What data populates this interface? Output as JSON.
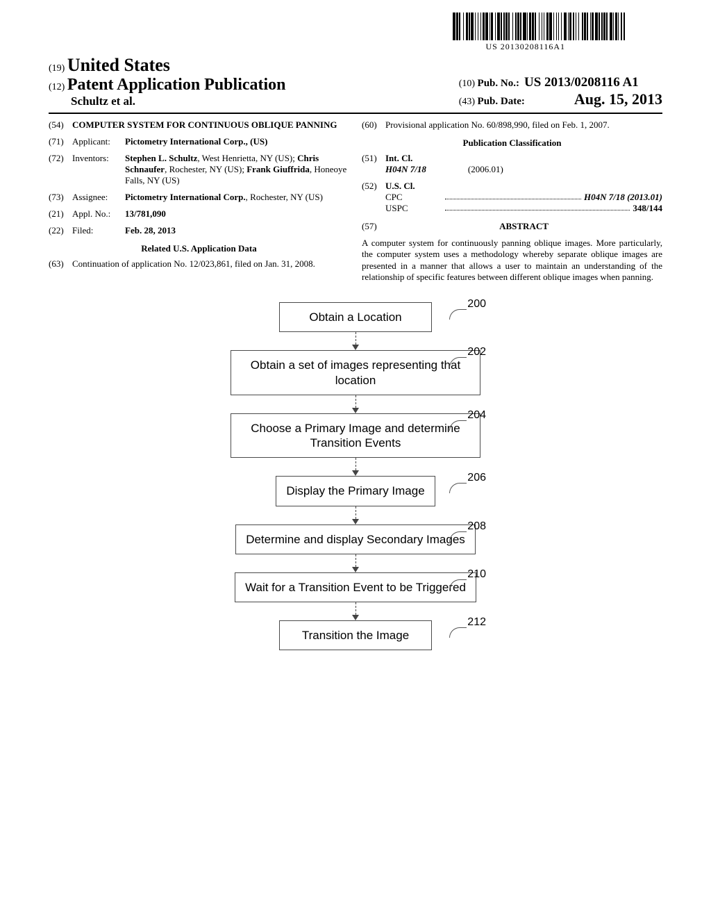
{
  "barcode_text": "US 20130208116A1",
  "header": {
    "country_code": "(19)",
    "country": "United States",
    "doc_code": "(12)",
    "doc_type": "Patent Application Publication",
    "author_line": "Schultz et al.",
    "pubno_code": "(10)",
    "pubno_label": "Pub. No.:",
    "pubno": "US 2013/0208116 A1",
    "pubdate_code": "(43)",
    "pubdate_label": "Pub. Date:",
    "pubdate": "Aug. 15, 2013"
  },
  "left": {
    "title_code": "(54)",
    "title": "COMPUTER SYSTEM FOR CONTINUOUS OBLIQUE PANNING",
    "applicant_code": "(71)",
    "applicant_label": "Applicant:",
    "applicant": "Pictometry International Corp., (US)",
    "inventors_code": "(72)",
    "inventors_label": "Inventors:",
    "inventors": "Stephen L. Schultz, West Henrietta, NY (US); Chris Schnaufer, Rochester, NY (US); Frank Giuffrida, Honeoye Falls, NY (US)",
    "assignee_code": "(73)",
    "assignee_label": "Assignee:",
    "assignee": "Pictometry International Corp., Rochester, NY (US)",
    "appl_code": "(21)",
    "appl_label": "Appl. No.:",
    "appl": "13/781,090",
    "filed_code": "(22)",
    "filed_label": "Filed:",
    "filed": "Feb. 28, 2013",
    "related_title": "Related U.S. Application Data",
    "cont_code": "(63)",
    "cont": "Continuation of application No. 12/023,861, filed on Jan. 31, 2008."
  },
  "right": {
    "prov_code": "(60)",
    "prov": "Provisional application No. 60/898,990, filed on Feb. 1, 2007.",
    "pub_class_title": "Publication Classification",
    "intcl_code": "(51)",
    "intcl_label": "Int. Cl.",
    "intcl_sym": "H04N 7/18",
    "intcl_date": "(2006.01)",
    "uscl_code": "(52)",
    "uscl_label": "U.S. Cl.",
    "cpc_label": "CPC",
    "cpc_val": "H04N 7/18 (2013.01)",
    "uspc_label": "USPC",
    "uspc_val": "348/144",
    "abstract_code": "(57)",
    "abstract_label": "ABSTRACT",
    "abstract": "A computer system for continuously panning oblique images. More particularly, the computer system uses a methodology whereby separate oblique images are presented in a manner that allows a user to maintain an understanding of the relationship of specific features between different oblique images when panning."
  },
  "flowchart": {
    "type": "flowchart",
    "box_border_color": "#4a4a4a",
    "arrow_color": "#444444",
    "font_family": "Arial",
    "font_size_pt": 13,
    "steps": [
      {
        "num": "200",
        "text": "Obtain a Location"
      },
      {
        "num": "202",
        "text": "Obtain a set of images representing that location"
      },
      {
        "num": "204",
        "text": "Choose a Primary Image and determine Transition Events"
      },
      {
        "num": "206",
        "text": "Display the Primary Image"
      },
      {
        "num": "208",
        "text": "Determine and display Secondary Images"
      },
      {
        "num": "210",
        "text": "Wait for a Transition Event to be Triggered"
      },
      {
        "num": "212",
        "text": "Transition the Image"
      }
    ]
  }
}
